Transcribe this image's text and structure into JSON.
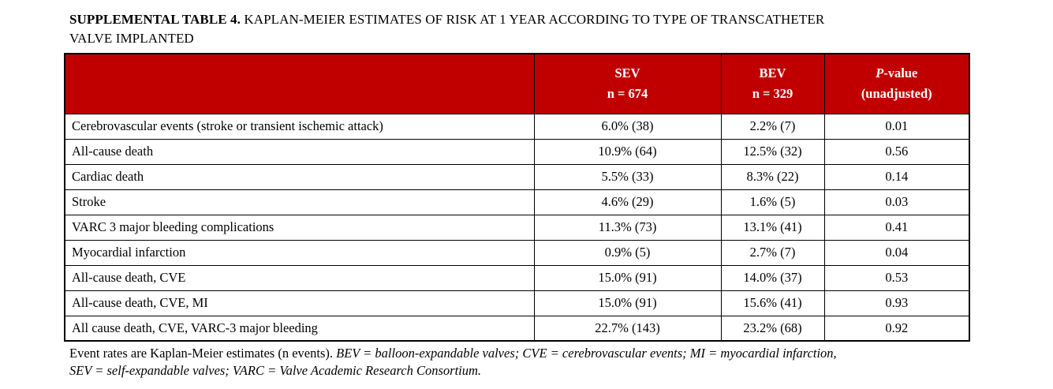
{
  "title": {
    "label": "SUPPLEMENTAL TABLE 4.",
    "line1_rest": "KAPLAN-MEIER ESTIMATES OF RISK AT 1 YEAR ACCORDING TO TYPE OF TRANSCATHETER",
    "line2": "VALVE IMPLANTED"
  },
  "table": {
    "header_bg": "#C00000",
    "header_text_color": "#FFFFFF",
    "header": {
      "row_label_col": "",
      "sev": {
        "line1": "SEV",
        "line2": "n = 674"
      },
      "bev": {
        "line1": "BEV",
        "line2": "n = 329"
      },
      "pvalue": {
        "p": "P",
        "suffix": "-value",
        "line2": "(unadjusted)"
      }
    },
    "rows": [
      {
        "label": "Cerebrovascular events (stroke or transient ischemic attack)",
        "sev": "6.0% (38)",
        "bev": "2.2% (7)",
        "p": "0.01"
      },
      {
        "label": "All-cause death",
        "sev": "10.9% (64)",
        "bev": "12.5% (32)",
        "p": "0.56"
      },
      {
        "label": "Cardiac death",
        "sev": "5.5% (33)",
        "bev": "8.3% (22)",
        "p": "0.14"
      },
      {
        "label": "Stroke",
        "sev": "4.6% (29)",
        "bev": "1.6% (5)",
        "p": "0.03"
      },
      {
        "label": "VARC 3 major bleeding complications",
        "sev": "11.3% (73)",
        "bev": "13.1% (41)",
        "p": "0.41"
      },
      {
        "label": "Myocardial infarction",
        "sev": "0.9% (5)",
        "bev": "2.7% (7)",
        "p": "0.04"
      },
      {
        "label": "All-cause death, CVE",
        "sev": "15.0% (91)",
        "bev": "14.0% (37)",
        "p": "0.53"
      },
      {
        "label": "All-cause death, CVE, MI",
        "sev": "15.0% (91)",
        "bev": "15.6% (41)",
        "p": "0.93"
      },
      {
        "label": "All cause death, CVE, VARC-3 major bleeding",
        "sev": "22.7% (143)",
        "bev": "23.2% (68)",
        "p": "0.92"
      }
    ]
  },
  "footnote": {
    "regular": "Event rates are Kaplan-Meier estimates (n events). ",
    "italic_line1": "BEV = balloon-expandable valves; CVE = cerebrovascular events; MI = myocardial infarction,",
    "italic_line2": "SEV = self-expandable valves; VARC = Valve Academic Research Consortium."
  }
}
